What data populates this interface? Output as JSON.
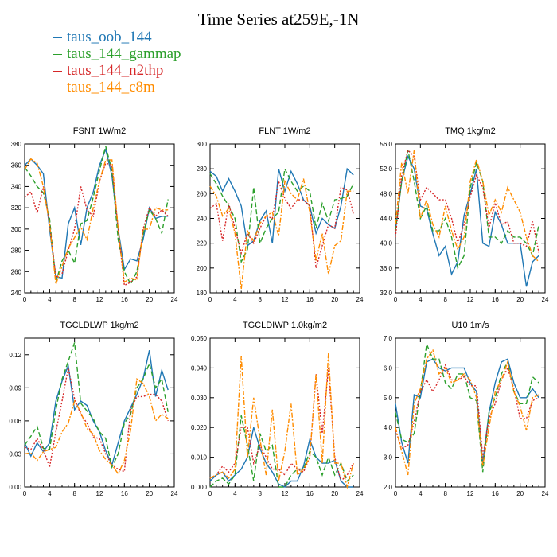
{
  "page": {
    "title": "Time Series at259E,-1N"
  },
  "legend": [
    {
      "label": "taus_oob_144",
      "color": "#1f77b4"
    },
    {
      "label": "taus_144_gammap",
      "color": "#2ca02c"
    },
    {
      "label": "taus_144_n2thp",
      "color": "#d62728"
    },
    {
      "label": "taus_144_c8m",
      "color": "#ff8c00"
    }
  ],
  "chart_data": [
    {
      "type": "line",
      "title": "FSNT   1W/m2",
      "x": [
        0,
        1,
        2,
        3,
        4,
        5,
        6,
        7,
        8,
        9,
        10,
        11,
        12,
        13,
        14,
        15,
        16,
        17,
        18,
        19,
        20,
        21,
        22,
        23
      ],
      "xlim": [
        0,
        24
      ],
      "xticks": [
        "0",
        "4",
        "8",
        "12",
        "16",
        "20",
        "24"
      ],
      "ylim": [
        240,
        380
      ],
      "yticks": [
        "240",
        "260",
        "280",
        "300",
        "320",
        "340",
        "360",
        "380"
      ],
      "series": [
        {
          "name": "taus_oob_144",
          "values": [
            360,
            366,
            360,
            352,
            300,
            255,
            254,
            305,
            320,
            285,
            320,
            335,
            360,
            375,
            350,
            300,
            262,
            272,
            270,
            290,
            320,
            310,
            312,
            312
          ]
        },
        {
          "name": "taus_144_gammap",
          "values": [
            358,
            350,
            340,
            334,
            310,
            250,
            270,
            280,
            268,
            305,
            308,
            330,
            355,
            378,
            355,
            290,
            260,
            248,
            260,
            295,
            318,
            310,
            296,
            328
          ]
        },
        {
          "name": "taus_144_n2thp",
          "values": [
            330,
            335,
            315,
            340,
            305,
            255,
            258,
            280,
            300,
            340,
            318,
            312,
            345,
            362,
            360,
            300,
            247,
            250,
            255,
            300,
            320,
            312,
            318,
            312
          ]
        },
        {
          "name": "taus_144_c8m",
          "values": [
            356,
            366,
            362,
            340,
            305,
            248,
            265,
            282,
            292,
            302,
            290,
            320,
            345,
            365,
            365,
            300,
            250,
            254,
            252,
            300,
            300,
            320,
            318,
            318
          ]
        }
      ]
    },
    {
      "type": "line",
      "title": "FLNT   1W/m2",
      "x": [
        0,
        1,
        2,
        3,
        4,
        5,
        6,
        7,
        8,
        9,
        10,
        11,
        12,
        13,
        14,
        15,
        16,
        17,
        18,
        19,
        20,
        21,
        22,
        23
      ],
      "xlim": [
        0,
        24
      ],
      "xticks": [
        "0",
        "4",
        "8",
        "12",
        "16",
        "20",
        "24"
      ],
      "ylim": [
        180,
        300
      ],
      "yticks": [
        "180",
        "200",
        "220",
        "240",
        "260",
        "280",
        "300"
      ],
      "series": [
        {
          "name": "taus_oob_144",
          "values": [
            278,
            274,
            262,
            272,
            262,
            250,
            218,
            222,
            238,
            246,
            220,
            280,
            262,
            278,
            268,
            255,
            250,
            228,
            240,
            235,
            232,
            250,
            280,
            275
          ]
        },
        {
          "name": "taus_144_gammap",
          "values": [
            276,
            268,
            258,
            250,
            240,
            205,
            215,
            265,
            220,
            232,
            240,
            245,
            280,
            270,
            262,
            266,
            262,
            232,
            252,
            238,
            255,
            256,
            258,
            268
          ]
        },
        {
          "name": "taus_144_n2thp",
          "values": [
            248,
            252,
            222,
            252,
            232,
            212,
            228,
            220,
            232,
            242,
            240,
            270,
            256,
            248,
            255,
            255,
            250,
            200,
            218,
            235,
            232,
            265,
            263,
            244
          ]
        },
        {
          "name": "taus_144_c8m",
          "values": [
            266,
            258,
            242,
            248,
            228,
            183,
            230,
            222,
            236,
            242,
            245,
            226,
            270,
            260,
            255,
            272,
            245,
            206,
            228,
            195,
            218,
            222,
            262,
            262
          ]
        }
      ]
    },
    {
      "type": "line",
      "title": "TMQ   1kg/m2",
      "x": [
        0,
        1,
        2,
        3,
        4,
        5,
        6,
        7,
        8,
        9,
        10,
        11,
        12,
        13,
        14,
        15,
        16,
        17,
        18,
        19,
        20,
        21,
        22,
        23
      ],
      "xlim": [
        0,
        24
      ],
      "xticks": [
        "0",
        "4",
        "8",
        "12",
        "16",
        "20",
        "24"
      ],
      "ylim": [
        32.0,
        56.0
      ],
      "yticks": [
        "32.0",
        "36.0",
        "40.0",
        "44.0",
        "48.0",
        "52.0",
        "56.0"
      ],
      "series": [
        {
          "name": "taus_oob_144",
          "values": [
            42.0,
            50.0,
            54.0,
            52.0,
            46.0,
            45.5,
            41.5,
            38.0,
            39.5,
            35.0,
            37.0,
            44.5,
            48.0,
            52.0,
            40.0,
            39.5,
            45.0,
            43.0,
            40.0,
            40.0,
            40.0,
            33.0,
            37.0,
            38.0
          ]
        },
        {
          "name": "taus_144_gammap",
          "values": [
            42.0,
            50.0,
            55.0,
            50.0,
            44.0,
            46.0,
            42.0,
            42.0,
            44.0,
            41.0,
            36.0,
            38.0,
            49.0,
            53.0,
            50.0,
            41.0,
            41.0,
            40.0,
            42.0,
            41.0,
            41.0,
            40.0,
            38.0,
            43.0
          ]
        },
        {
          "name": "taus_144_n2thp",
          "values": [
            41.0,
            51.0,
            55.0,
            54.0,
            47.0,
            49.0,
            48.0,
            47.0,
            47.0,
            44.0,
            40.0,
            43.0,
            47.5,
            51.0,
            49.0,
            42.5,
            46.5,
            43.0,
            43.5,
            40.0,
            40.0,
            39.5,
            43.5,
            38.5
          ]
        },
        {
          "name": "taus_144_c8m",
          "values": [
            43.0,
            53.0,
            48.0,
            55.0,
            44.0,
            47.0,
            43.0,
            41.0,
            46.0,
            42.0,
            39.0,
            41.0,
            50.0,
            53.5,
            50.0,
            44.5,
            47.0,
            45.0,
            49.0,
            47.0,
            45.0,
            41.0,
            38.0,
            37.0
          ]
        }
      ]
    },
    {
      "type": "line",
      "title": "TGCLDLWP   1kg/m2",
      "x": [
        0,
        1,
        2,
        3,
        4,
        5,
        6,
        7,
        8,
        9,
        10,
        11,
        12,
        13,
        14,
        15,
        16,
        17,
        18,
        19,
        20,
        21,
        22,
        23
      ],
      "xlim": [
        0,
        24
      ],
      "xticks": [
        "0",
        "4",
        "8",
        "12",
        "16",
        "20",
        "24"
      ],
      "ylim": [
        0.0,
        0.135
      ],
      "yticks": [
        "0.00",
        "0.03",
        "0.06",
        "0.09",
        "0.12"
      ],
      "series": [
        {
          "name": "taus_oob_144",
          "values": [
            0.04,
            0.028,
            0.04,
            0.032,
            0.04,
            0.078,
            0.096,
            0.11,
            0.07,
            0.078,
            0.074,
            0.06,
            0.05,
            0.033,
            0.02,
            0.04,
            0.06,
            0.072,
            0.084,
            0.098,
            0.124,
            0.082,
            0.106,
            0.088
          ]
        },
        {
          "name": "taus_144_gammap",
          "values": [
            0.038,
            0.046,
            0.055,
            0.035,
            0.034,
            0.07,
            0.098,
            0.114,
            0.131,
            0.076,
            0.069,
            0.062,
            0.05,
            0.044,
            0.018,
            0.03,
            0.058,
            0.066,
            0.09,
            0.098,
            0.112,
            0.09,
            0.098,
            0.068
          ]
        },
        {
          "name": "taus_144_n2thp",
          "values": [
            0.036,
            0.034,
            0.044,
            0.034,
            0.018,
            0.05,
            0.078,
            0.108,
            0.08,
            0.066,
            0.058,
            0.045,
            0.044,
            0.03,
            0.02,
            0.016,
            0.014,
            0.07,
            0.082,
            0.082,
            0.084,
            0.084,
            0.078,
            0.06
          ]
        },
        {
          "name": "taus_144_c8m",
          "values": [
            0.03,
            0.031,
            0.024,
            0.032,
            0.034,
            0.036,
            0.05,
            0.058,
            0.078,
            0.068,
            0.053,
            0.048,
            0.033,
            0.025,
            0.02,
            0.012,
            0.024,
            0.052,
            0.098,
            0.094,
            0.082,
            0.06,
            0.066,
            0.062
          ]
        }
      ]
    },
    {
      "type": "line",
      "title": "TGCLDIWP   1.0kg/m2",
      "x": [
        0,
        1,
        2,
        3,
        4,
        5,
        6,
        7,
        8,
        9,
        10,
        11,
        12,
        13,
        14,
        15,
        16,
        17,
        18,
        19,
        20,
        21,
        22,
        23
      ],
      "xlim": [
        0,
        24
      ],
      "xticks": [
        "0",
        "4",
        "8",
        "12",
        "16",
        "20",
        "24"
      ],
      "ylim": [
        0.0,
        0.05
      ],
      "yticks": [
        "0.000",
        "0.010",
        "0.020",
        "0.030",
        "0.040",
        "0.050"
      ],
      "series": [
        {
          "name": "taus_oob_144",
          "values": [
            0.002,
            0.004,
            0.005,
            0.002,
            0.004,
            0.006,
            0.01,
            0.02,
            0.013,
            0.008,
            0.005,
            0.001,
            0.0,
            0.002,
            0.002,
            0.007,
            0.016,
            0.01,
            0.008,
            0.008,
            0.009,
            0.002,
            0.0,
            0.0
          ]
        },
        {
          "name": "taus_144_gammap",
          "values": [
            0.0,
            0.002,
            0.003,
            0.001,
            0.004,
            0.024,
            0.014,
            0.002,
            0.018,
            0.012,
            0.014,
            0.0,
            0.0,
            0.004,
            0.006,
            0.006,
            0.012,
            0.01,
            0.004,
            0.01,
            0.004,
            0.008,
            0.002,
            0.004
          ]
        },
        {
          "name": "taus_144_n2thp",
          "values": [
            0.003,
            0.004,
            0.007,
            0.005,
            0.008,
            0.02,
            0.02,
            0.008,
            0.014,
            0.01,
            0.006,
            0.006,
            0.004,
            0.008,
            0.006,
            0.005,
            0.01,
            0.038,
            0.018,
            0.04,
            0.01,
            0.002,
            0.004,
            0.008
          ]
        },
        {
          "name": "taus_144_c8m",
          "values": [
            0.003,
            0.004,
            0.005,
            0.003,
            0.006,
            0.044,
            0.01,
            0.03,
            0.016,
            0.004,
            0.026,
            0.002,
            0.012,
            0.028,
            0.004,
            0.006,
            0.01,
            0.038,
            0.008,
            0.045,
            0.008,
            0.008,
            0.0,
            0.008
          ]
        }
      ]
    },
    {
      "type": "line",
      "title": "U10   1m/s",
      "x": [
        0,
        1,
        2,
        3,
        4,
        5,
        6,
        7,
        8,
        9,
        10,
        11,
        12,
        13,
        14,
        15,
        16,
        17,
        18,
        19,
        20,
        21,
        22,
        23
      ],
      "xlim": [
        0,
        24
      ],
      "xticks": [
        "0",
        "4",
        "8",
        "12",
        "16",
        "20",
        "24"
      ],
      "ylim": [
        2.0,
        7.0
      ],
      "yticks": [
        "2.0",
        "3.0",
        "4.0",
        "5.0",
        "6.0",
        "7.0"
      ],
      "series": [
        {
          "name": "taus_oob_144",
          "values": [
            4.8,
            3.5,
            2.8,
            5.1,
            5.0,
            6.2,
            6.3,
            6.0,
            5.9,
            6.0,
            6.0,
            6.0,
            5.5,
            5.2,
            2.8,
            4.5,
            5.5,
            6.2,
            6.3,
            5.5,
            5.0,
            5.0,
            5.3,
            5.0
          ]
        },
        {
          "name": "taus_144_gammap",
          "values": [
            4.5,
            3.6,
            3.5,
            3.8,
            5.2,
            6.8,
            6.3,
            6.3,
            5.5,
            5.3,
            5.8,
            5.8,
            5.0,
            4.9,
            2.5,
            4.5,
            5.0,
            5.8,
            6.2,
            5.2,
            4.8,
            4.8,
            5.7,
            5.5
          ]
        },
        {
          "name": "taus_144_n2thp",
          "values": [
            3.9,
            3.3,
            3.4,
            4.2,
            5.2,
            5.6,
            5.2,
            5.6,
            6.1,
            5.6,
            5.6,
            5.7,
            5.4,
            5.4,
            3.0,
            4.3,
            4.8,
            5.6,
            6.0,
            5.3,
            4.3,
            4.3,
            4.9,
            5.0
          ]
        },
        {
          "name": "taus_144_c8m",
          "values": [
            4.0,
            3.2,
            2.4,
            4.8,
            5.3,
            6.3,
            6.6,
            5.8,
            6.0,
            5.5,
            5.6,
            5.8,
            5.6,
            5.0,
            2.7,
            4.0,
            5.2,
            5.6,
            6.2,
            5.2,
            4.7,
            3.9,
            5.0,
            5.1
          ]
        }
      ]
    }
  ]
}
